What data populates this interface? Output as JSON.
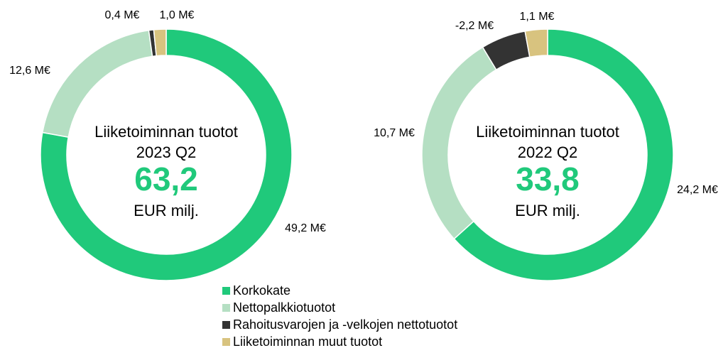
{
  "chart_data": [
    {
      "type": "donut",
      "center_title": "Liiketoiminnan tuotot",
      "period": "2023 Q2",
      "total": 63.2,
      "total_label": "63,2",
      "unit": "EUR milj.",
      "categories": [
        "Korkokate",
        "Nettopalkkiotuotot",
        "Rahoitusvarojen ja -velkojen nettotuotot",
        "Liiketoiminnan muut tuotot"
      ],
      "values": [
        49.2,
        12.6,
        0.4,
        1.0
      ],
      "value_labels": [
        "49,2 M€",
        "12,6 M€",
        "0,4 M€",
        "1,0 M€"
      ],
      "colors": [
        "#20c97b",
        "#b5dfc3",
        "#333333",
        "#d8c37f"
      ]
    },
    {
      "type": "donut",
      "center_title": "Liiketoiminnan tuotot",
      "period": "2022 Q2",
      "total": 33.8,
      "total_label": "33,8",
      "unit": "EUR milj.",
      "categories": [
        "Korkokate",
        "Nettopalkkiotuotot",
        "Rahoitusvarojen ja -velkojen nettotuotot",
        "Liiketoiminnan muut tuotot"
      ],
      "values": [
        24.2,
        10.7,
        -2.2,
        1.1
      ],
      "value_labels": [
        "24,2 M€",
        "10,7 M€",
        "-2,2 M€",
        "1,1 M€"
      ],
      "colors": [
        "#20c97b",
        "#b5dfc3",
        "#333333",
        "#d8c37f"
      ]
    }
  ]
}
